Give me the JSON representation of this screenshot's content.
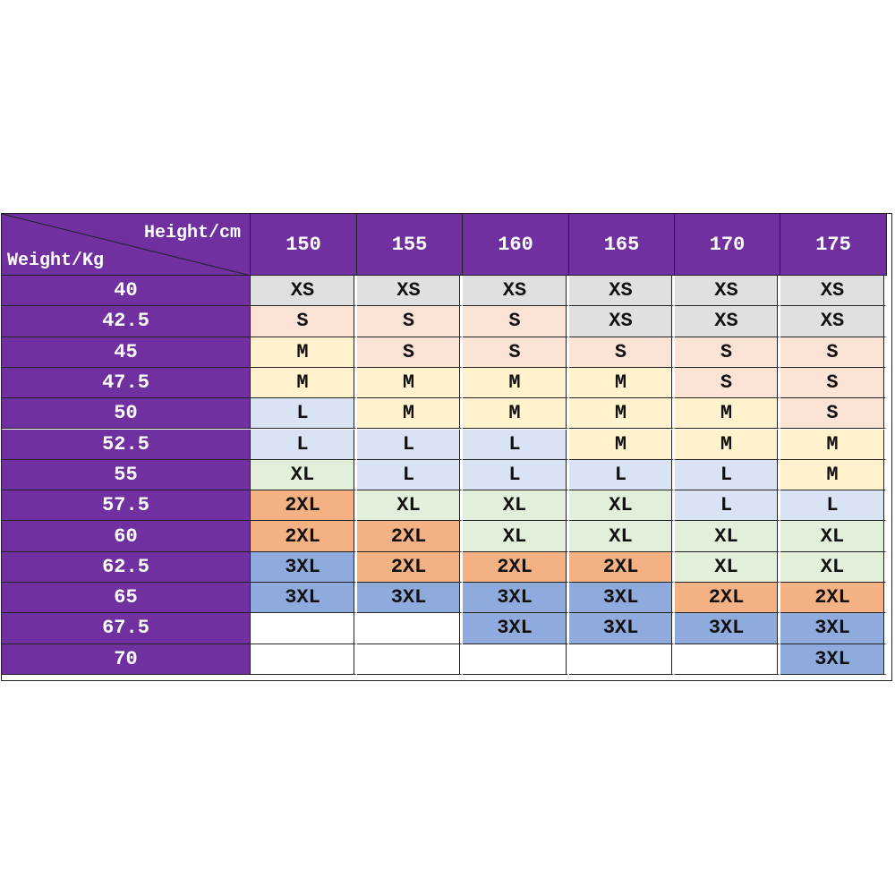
{
  "table": {
    "corner": {
      "column_header": "Height/cm",
      "row_header": "Weight/Kg"
    },
    "columns": [
      "150",
      "155",
      "160",
      "165",
      "170",
      "175"
    ],
    "rows": [
      {
        "weight": "40",
        "sizes": [
          "XS",
          "XS",
          "XS",
          "XS",
          "XS",
          "XS"
        ]
      },
      {
        "weight": "42.5",
        "sizes": [
          "S",
          "S",
          "S",
          "XS",
          "XS",
          "XS"
        ]
      },
      {
        "weight": "45",
        "sizes": [
          "M",
          "S",
          "S",
          "S",
          "S",
          "S"
        ]
      },
      {
        "weight": "47.5",
        "sizes": [
          "M",
          "M",
          "M",
          "M",
          "S",
          "S"
        ]
      },
      {
        "weight": "50",
        "sizes": [
          "L",
          "M",
          "M",
          "M",
          "M",
          "S"
        ]
      },
      {
        "weight": "52.5",
        "sizes": [
          "L",
          "L",
          "L",
          "M",
          "M",
          "M"
        ]
      },
      {
        "weight": "55",
        "sizes": [
          "XL",
          "L",
          "L",
          "L",
          "L",
          "M"
        ]
      },
      {
        "weight": "57.5",
        "sizes": [
          "2XL",
          "XL",
          "XL",
          "XL",
          "L",
          "L"
        ]
      },
      {
        "weight": "60",
        "sizes": [
          "2XL",
          "2XL",
          "XL",
          "XL",
          "XL",
          "XL"
        ]
      },
      {
        "weight": "62.5",
        "sizes": [
          "3XL",
          "2XL",
          "2XL",
          "2XL",
          "XL",
          "XL"
        ]
      },
      {
        "weight": "65",
        "sizes": [
          "3XL",
          "3XL",
          "3XL",
          "3XL",
          "2XL",
          "2XL"
        ]
      },
      {
        "weight": "67.5",
        "sizes": [
          null,
          null,
          "3XL",
          "3XL",
          "3XL",
          "3XL"
        ]
      },
      {
        "weight": "70",
        "sizes": [
          null,
          null,
          null,
          null,
          null,
          "3XL"
        ]
      }
    ],
    "size_colors": {
      "XS": "#e0e0e0",
      "S": "#fbe3d6",
      "M": "#fff2cc",
      "L": "#dae3f3",
      "XL": "#e2efda",
      "2XL": "#f4b183",
      "3XL": "#8faadc"
    },
    "header_color": "#7030a0"
  }
}
